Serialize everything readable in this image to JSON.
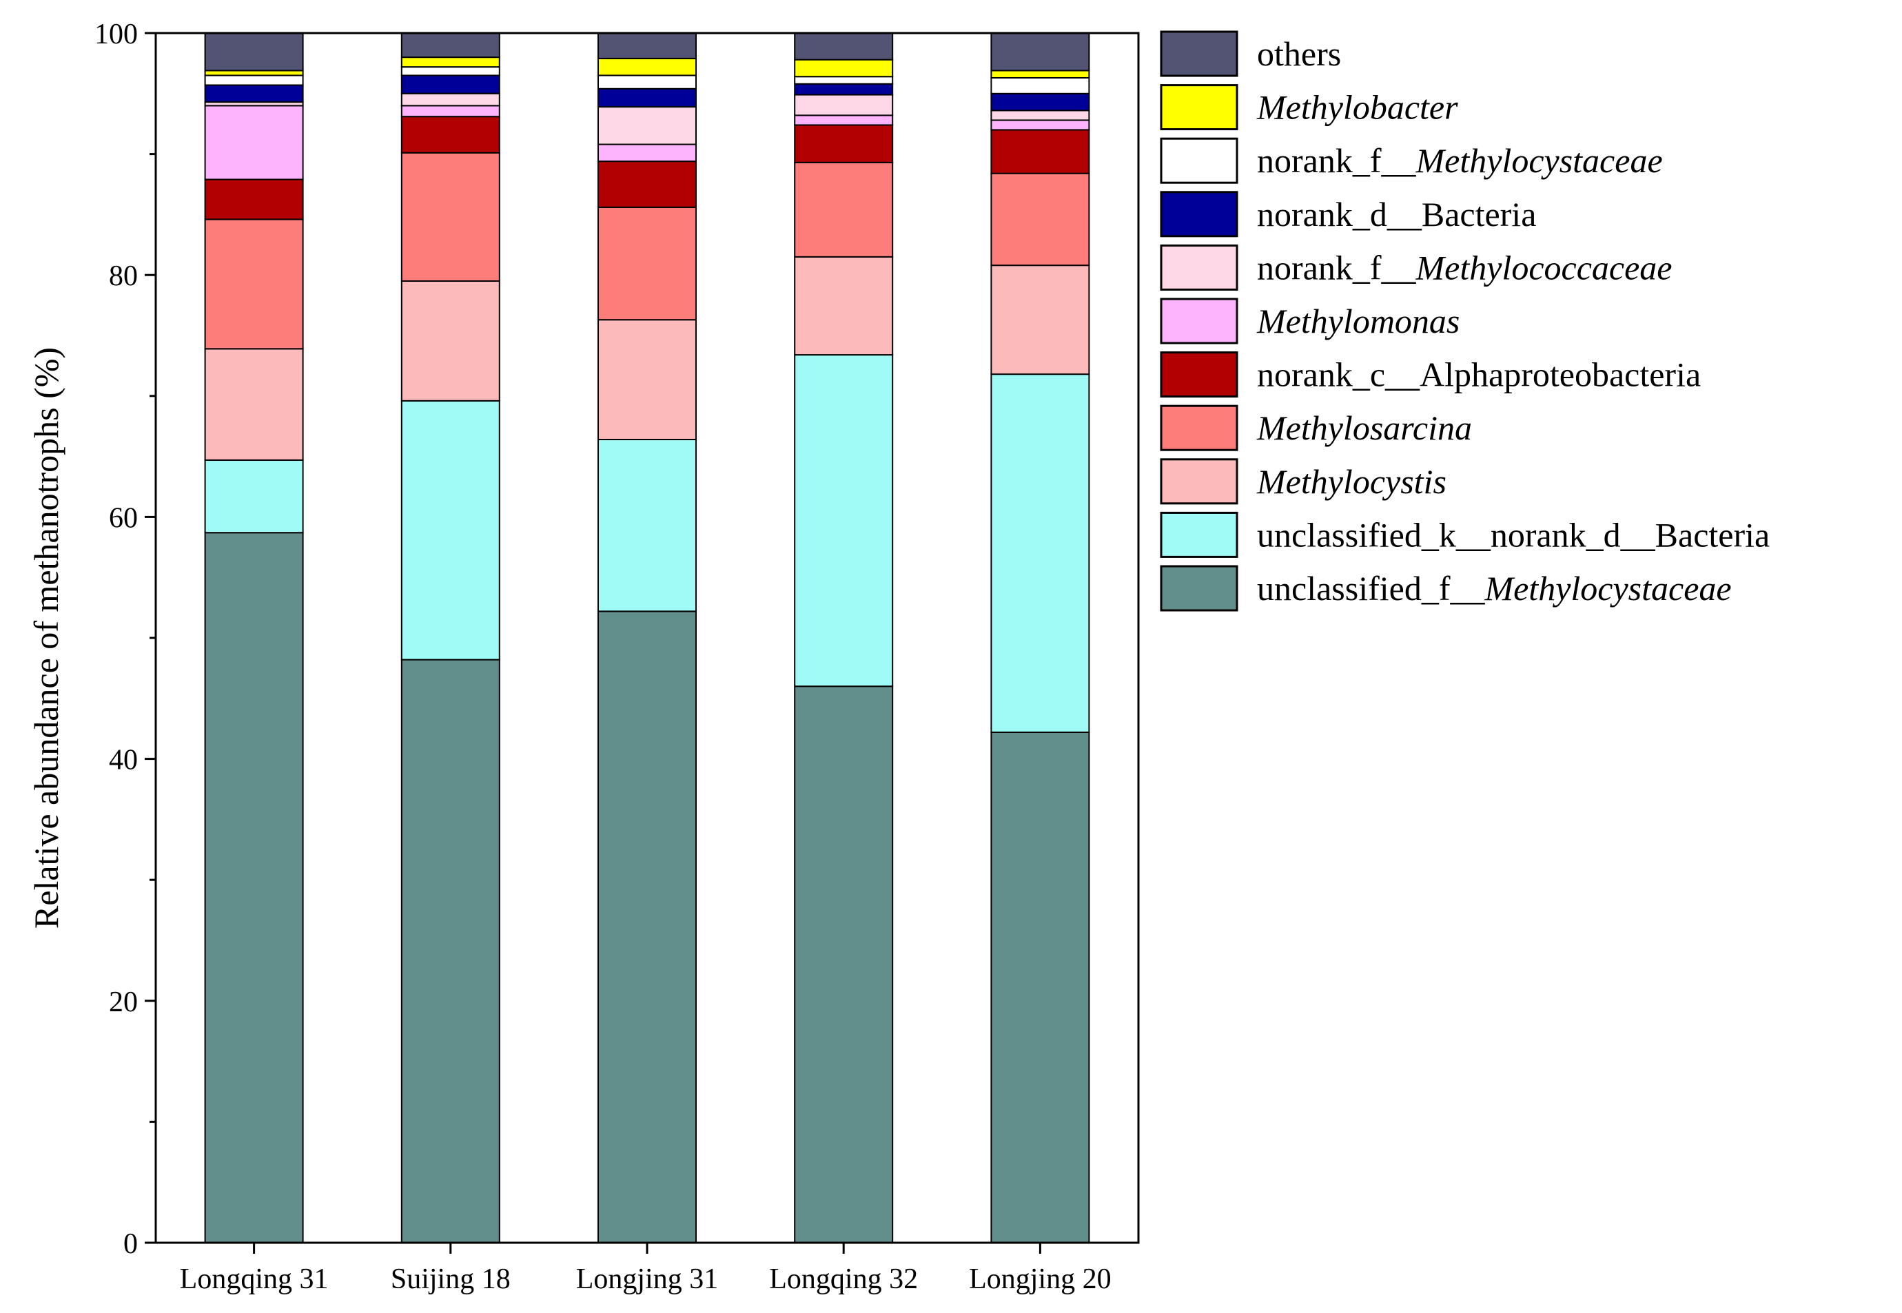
{
  "chart_data": {
    "type": "bar",
    "stacked": true,
    "ylabel": "Relative abundance of  methanotrophs (%)",
    "xlabel": "",
    "ylim": [
      0,
      100
    ],
    "yticks": [
      0,
      20,
      40,
      60,
      80,
      100
    ],
    "categories": [
      "Longqing 31",
      "Suijing 18",
      "Longjing 31",
      "Longqing 32",
      "Longjing 20"
    ],
    "legend_position": "right",
    "series": [
      {
        "name": "unclassified_f__",
        "italic_suffix": "Methylocystaceae",
        "color": "#628F8B",
        "values": [
          58.7,
          48.2,
          52.2,
          46.0,
          42.2
        ]
      },
      {
        "name": "unclassified_k__norank_d__Bacteria",
        "italic_suffix": "",
        "color": "#A0FAF6",
        "values": [
          6.0,
          21.4,
          14.2,
          27.4,
          29.6
        ]
      },
      {
        "name": "",
        "italic_suffix": "Methylocystis",
        "color": "#FDBABA",
        "values": [
          9.2,
          9.9,
          9.9,
          8.1,
          9.0
        ]
      },
      {
        "name": "",
        "italic_suffix": "Methylosarcina",
        "color": "#FD7D7B",
        "values": [
          10.7,
          10.6,
          9.3,
          7.8,
          7.6
        ]
      },
      {
        "name": "norank_c__Alphaproteobacteria",
        "italic_suffix": "",
        "color": "#B20002",
        "values": [
          3.3,
          3.0,
          3.8,
          3.1,
          3.6
        ]
      },
      {
        "name": "",
        "italic_suffix": "Methylomonas",
        "color": "#FDB4FC",
        "values": [
          6.1,
          0.9,
          1.4,
          0.8,
          0.8
        ]
      },
      {
        "name": "norank_f__",
        "italic_suffix": "Methylococcaceae",
        "color": "#FED8E6",
        "values": [
          0.3,
          1.0,
          3.1,
          1.7,
          0.8
        ]
      },
      {
        "name": "norank_d__Bacteria",
        "italic_suffix": "",
        "color": "#000099",
        "values": [
          1.4,
          1.5,
          1.5,
          0.9,
          1.4
        ]
      },
      {
        "name": "norank_f__",
        "italic_suffix": "Methylocystaceae",
        "color": "#FFFFFF",
        "values": [
          0.8,
          0.7,
          1.1,
          0.6,
          1.3
        ]
      },
      {
        "name": "",
        "italic_suffix": "Methylobacter",
        "color": "#FFFF00",
        "values": [
          0.4,
          0.8,
          1.4,
          1.4,
          0.6
        ]
      },
      {
        "name": "others",
        "italic_suffix": "",
        "color": "#535374",
        "values": [
          3.1,
          2.0,
          2.1,
          2.2,
          3.1
        ]
      }
    ]
  }
}
